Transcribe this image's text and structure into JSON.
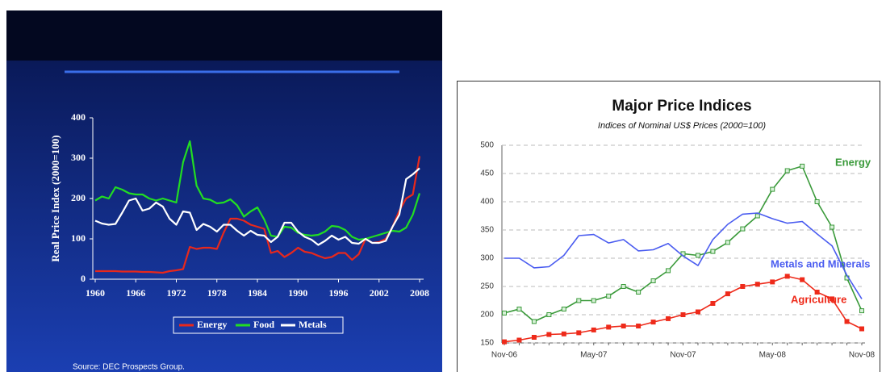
{
  "chart_data": [
    {
      "type": "line",
      "y_label": "Real Price Index (2000=100)",
      "source": "Source: DEC Prospects Group.",
      "x": [
        1960,
        1961,
        1962,
        1963,
        1964,
        1965,
        1966,
        1967,
        1968,
        1969,
        1970,
        1971,
        1972,
        1973,
        1974,
        1975,
        1976,
        1977,
        1978,
        1979,
        1980,
        1981,
        1982,
        1983,
        1984,
        1985,
        1986,
        1987,
        1988,
        1989,
        1990,
        1991,
        1992,
        1993,
        1994,
        1995,
        1996,
        1997,
        1998,
        1999,
        2000,
        2001,
        2002,
        2003,
        2004,
        2005,
        2006,
        2007,
        2008
      ],
      "xlim": [
        1960,
        2008
      ],
      "xticks": [
        1960,
        1966,
        1972,
        1978,
        1984,
        1990,
        1996,
        2002,
        2008
      ],
      "ylim": [
        0,
        400
      ],
      "yticks": [
        0,
        100,
        200,
        300,
        400
      ],
      "legend": "bottom",
      "series": [
        {
          "name": "Energy",
          "color": "#e8281c",
          "values": [
            20,
            20,
            20,
            20,
            19,
            19,
            19,
            18,
            18,
            17,
            16,
            20,
            22,
            25,
            80,
            75,
            78,
            78,
            75,
            115,
            150,
            150,
            145,
            135,
            130,
            125,
            65,
            70,
            55,
            65,
            78,
            68,
            65,
            58,
            52,
            55,
            65,
            65,
            48,
            62,
            100,
            90,
            92,
            100,
            130,
            170,
            200,
            210,
            305
          ]
        },
        {
          "name": "Food",
          "color": "#22dd22",
          "values": [
            195,
            205,
            200,
            228,
            222,
            213,
            210,
            210,
            200,
            195,
            200,
            195,
            190,
            290,
            342,
            232,
            200,
            197,
            188,
            190,
            198,
            183,
            155,
            168,
            178,
            148,
            108,
            105,
            130,
            128,
            115,
            110,
            108,
            110,
            118,
            132,
            130,
            122,
            105,
            98,
            100,
            105,
            110,
            115,
            120,
            118,
            128,
            160,
            213
          ]
        },
        {
          "name": "Metals",
          "color": "#ffffff",
          "values": [
            145,
            138,
            135,
            137,
            165,
            195,
            200,
            170,
            175,
            190,
            180,
            150,
            135,
            168,
            165,
            122,
            137,
            130,
            118,
            135,
            135,
            120,
            108,
            120,
            110,
            108,
            92,
            105,
            140,
            140,
            118,
            105,
            98,
            85,
            95,
            108,
            98,
            105,
            90,
            88,
            100,
            90,
            90,
            95,
            130,
            160,
            248,
            260,
            275
          ]
        }
      ]
    },
    {
      "type": "line",
      "title": "Major Price Indices",
      "subtitle": "Indices of Nominal US$ Prices  (2000=100)",
      "categories": [
        "Nov-06",
        null,
        null,
        null,
        null,
        null,
        "May-07",
        null,
        null,
        null,
        null,
        null,
        "Nov-07",
        null,
        null,
        null,
        null,
        null,
        "May-08",
        null,
        null,
        null,
        null,
        null,
        "Nov-08"
      ],
      "ylim": [
        150,
        500
      ],
      "yticks": [
        150,
        200,
        250,
        300,
        350,
        400,
        450,
        500
      ],
      "grid": true,
      "series": [
        {
          "name": "Energy",
          "color": "#3a9a3a",
          "markers": true,
          "values": [
            203,
            210,
            188,
            200,
            210,
            225,
            225,
            233,
            250,
            240,
            260,
            278,
            308,
            305,
            312,
            328,
            352,
            375,
            422,
            455,
            463,
            400,
            355,
            265,
            207
          ]
        },
        {
          "name": "Metals and Minerals",
          "color": "#4a5cf0",
          "markers": false,
          "values": [
            300,
            300,
            283,
            285,
            305,
            340,
            342,
            327,
            333,
            313,
            315,
            326,
            304,
            287,
            333,
            360,
            378,
            380,
            370,
            362,
            365,
            343,
            322,
            270,
            228
          ]
        },
        {
          "name": "Agriculture",
          "color": "#ee2a1a",
          "markers": true,
          "values": [
            152,
            155,
            160,
            165,
            166,
            168,
            173,
            178,
            180,
            180,
            187,
            193,
            200,
            205,
            220,
            237,
            250,
            254,
            258,
            268,
            262,
            240,
            228,
            188,
            175
          ]
        }
      ]
    }
  ]
}
